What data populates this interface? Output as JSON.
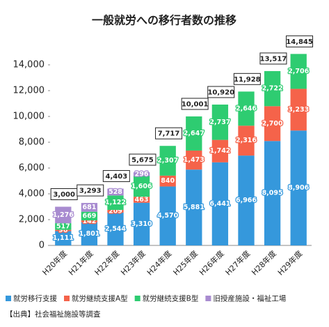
{
  "chart_data": {
    "type": "bar",
    "stacked": true,
    "title": "一般就労への移行者数の推移",
    "categories": [
      "H20年度",
      "H21年度",
      "H22年度",
      "H23年度",
      "H24年度",
      "H25年度",
      "H26年度",
      "H27年度",
      "H28年度",
      "H29年度"
    ],
    "series": [
      {
        "name": "就労移行支援",
        "color": "#3598dc",
        "values": [
          1111,
          1801,
          2544,
          3310,
          4570,
          5881,
          6441,
          6966,
          8095,
          8906
        ],
        "value_labels": [
          "1,111",
          "1,801",
          "2,544",
          "3,310",
          "4,570",
          "5,881",
          "6,441",
          "6,966",
          "8,095",
          "8,906"
        ]
      },
      {
        "name": "就労継続支援A型",
        "color": "#f5634a",
        "values": [
          96,
          142,
          209,
          463,
          840,
          1473,
          1742,
          2316,
          2700,
          3233
        ],
        "value_labels": [
          "96",
          "142",
          "209",
          "463",
          "840",
          "1,473",
          "1,742",
          "2,316",
          "2,700",
          "3,233"
        ]
      },
      {
        "name": "就労継続支援B型",
        "color": "#2ecc71",
        "values": [
          517,
          669,
          1122,
          1606,
          2307,
          2647,
          2737,
          2646,
          2722,
          2706
        ],
        "value_labels": [
          "517",
          "669",
          "1,122",
          "1,606",
          "2,307",
          "2,647",
          "2,737",
          "2,646",
          "2,722",
          "2,706"
        ]
      },
      {
        "name": "旧授産施設・福祉工場",
        "color": "#a88bd0",
        "values": [
          1276,
          681,
          528,
          296,
          null,
          null,
          null,
          null,
          null,
          null
        ],
        "value_labels": [
          "1,276",
          "681",
          "528",
          "296",
          null,
          null,
          null,
          null,
          null,
          null
        ]
      }
    ],
    "totals": {
      "values": [
        3000,
        3293,
        4403,
        5675,
        7717,
        10001,
        10920,
        11928,
        13517,
        14845
      ],
      "value_labels": [
        "3,000",
        "3,293",
        "4,403",
        "5,675",
        "7,717",
        "10,001",
        "10,920",
        "11,928",
        "13,517",
        "14,845"
      ]
    },
    "ylim": [
      0,
      16000
    ],
    "yticks": [
      0,
      {
        "value": 2000,
        "label": "2,000"
      },
      {
        "value": 4000,
        "label": "4,000"
      },
      {
        "value": 6000,
        "label": "6,000"
      },
      {
        "value": 8000,
        "label": "8,000"
      },
      {
        "value": 10000,
        "label": "10,000"
      },
      {
        "value": 12000,
        "label": "12,000"
      },
      {
        "value": 14000,
        "label": "14,000"
      }
    ],
    "grid": false,
    "legend": "bottom",
    "source": "【出典】社会福祉施設等調査"
  }
}
